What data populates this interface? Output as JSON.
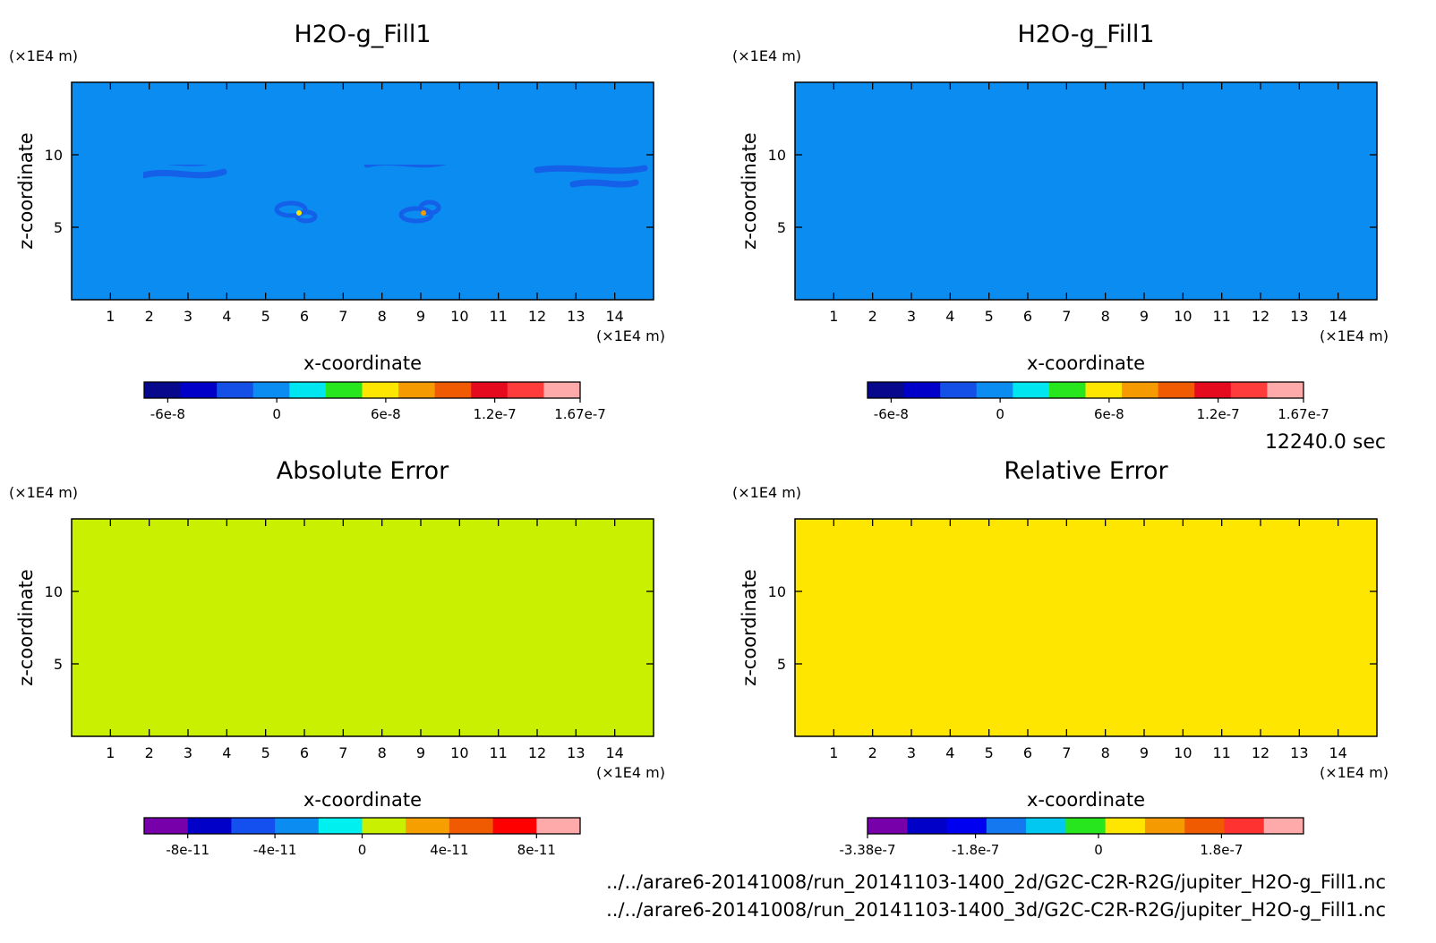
{
  "time_label": "12240.0 sec",
  "files": [
    "../../arare6-20141008/run_20141103-1400_2d/G2C-C2R-R2G/jupiter_H2O-g_Fill1.nc",
    "../../arare6-20141008/run_20141103-1400_3d/G2C-C2R-R2G/jupiter_H2O-g_Fill1.nc"
  ],
  "colors": {
    "blue_field": "#0a8cf0",
    "blue_contour": "#1560e8",
    "cyan": "#00e6f0",
    "lime_field": "#c8f000",
    "yellow_field": "#ffe600",
    "green": "#28e61e"
  },
  "chart_data": [
    {
      "type": "heatmap",
      "title": "H2O-g_Fill1",
      "xlabel": "x-coordinate",
      "ylabel": "z-coordinate",
      "x_unit": "(×1E4 m)",
      "y_unit": "(×1E4 m)",
      "xlim": [
        0,
        15
      ],
      "ylim": [
        0,
        15
      ],
      "x_ticks": [
        "1",
        "2",
        "3",
        "4",
        "5",
        "6",
        "7",
        "8",
        "9",
        "10",
        "11",
        "12",
        "13",
        "14"
      ],
      "y_ticks": [
        "5",
        "10"
      ],
      "colorbar": {
        "colors": [
          "#08088c",
          "#0000c8",
          "#1450e6",
          "#0a8cf0",
          "#00e6f0",
          "#28e61e",
          "#ffe600",
          "#f59a00",
          "#f05a00",
          "#e60a1e",
          "#ff3c3c",
          "#ffaaaa"
        ],
        "tick_labels": [
          "-6e-8",
          "0",
          "6e-8",
          "1.2e-7",
          "1.67e-7"
        ],
        "tick_values": [
          -6e-08,
          0,
          6e-08,
          1.2e-07,
          1.67e-07
        ],
        "range": [
          -7.3e-08,
          1.67e-07
        ]
      }
    },
    {
      "type": "heatmap",
      "title": "H2O-g_Fill1",
      "xlabel": "x-coordinate",
      "ylabel": "z-coordinate",
      "x_unit": "(×1E4 m)",
      "y_unit": "(×1E4 m)",
      "xlim": [
        0,
        15
      ],
      "ylim": [
        0,
        15
      ],
      "x_ticks": [
        "1",
        "2",
        "3",
        "4",
        "5",
        "6",
        "7",
        "8",
        "9",
        "10",
        "11",
        "12",
        "13",
        "14"
      ],
      "y_ticks": [
        "5",
        "10"
      ],
      "colorbar": {
        "colors": [
          "#08088c",
          "#0000c8",
          "#1450e6",
          "#0a8cf0",
          "#00e6f0",
          "#28e61e",
          "#ffe600",
          "#f59a00",
          "#f05a00",
          "#e60a1e",
          "#ff3c3c",
          "#ffaaaa"
        ],
        "tick_labels": [
          "-6e-8",
          "0",
          "6e-8",
          "1.2e-7",
          "1.67e-7"
        ],
        "tick_values": [
          -6e-08,
          0,
          6e-08,
          1.2e-07,
          1.67e-07
        ],
        "range": [
          -7.3e-08,
          1.67e-07
        ]
      }
    },
    {
      "type": "heatmap",
      "title": "Absolute Error",
      "xlabel": "x-coordinate",
      "ylabel": "z-coordinate",
      "x_unit": "(×1E4 m)",
      "y_unit": "(×1E4 m)",
      "xlim": [
        0,
        15
      ],
      "ylim": [
        0,
        15
      ],
      "x_ticks": [
        "1",
        "2",
        "3",
        "4",
        "5",
        "6",
        "7",
        "8",
        "9",
        "10",
        "11",
        "12",
        "13",
        "14"
      ],
      "y_ticks": [
        "5",
        "10"
      ],
      "colorbar": {
        "colors": [
          "#7800aa",
          "#0000c8",
          "#1450f0",
          "#0a8cf0",
          "#00f0f0",
          "#c8f000",
          "#f5a000",
          "#f05a00",
          "#ff0000",
          "#ffaaaa"
        ],
        "tick_labels": [
          "-8e-11",
          "-4e-11",
          "0",
          "4e-11",
          "8e-11"
        ],
        "tick_values": [
          -8e-11,
          -4e-11,
          0,
          4e-11,
          8e-11
        ],
        "range": [
          -1e-10,
          1e-10
        ]
      }
    },
    {
      "type": "heatmap",
      "title": "Relative Error",
      "xlabel": "x-coordinate",
      "ylabel": "z-coordinate",
      "x_unit": "(×1E4 m)",
      "y_unit": "(×1E4 m)",
      "xlim": [
        0,
        15
      ],
      "ylim": [
        0,
        15
      ],
      "x_ticks": [
        "1",
        "2",
        "3",
        "4",
        "5",
        "6",
        "7",
        "8",
        "9",
        "10",
        "11",
        "12",
        "13",
        "14"
      ],
      "y_ticks": [
        "5",
        "10"
      ],
      "colorbar": {
        "colors": [
          "#7800aa",
          "#0000c8",
          "#0000f0",
          "#1478f0",
          "#00c8f0",
          "#28e61e",
          "#ffe600",
          "#f59a00",
          "#f05a00",
          "#ff3232",
          "#ffaaaa"
        ],
        "tick_labels": [
          "-3.38e-7",
          "-1.8e-7",
          "0",
          "1.8e-7"
        ],
        "tick_values": [
          -3.38e-07,
          -1.8e-07,
          0,
          1.8e-07
        ],
        "range": [
          -3.38e-07,
          3e-07
        ]
      }
    }
  ]
}
